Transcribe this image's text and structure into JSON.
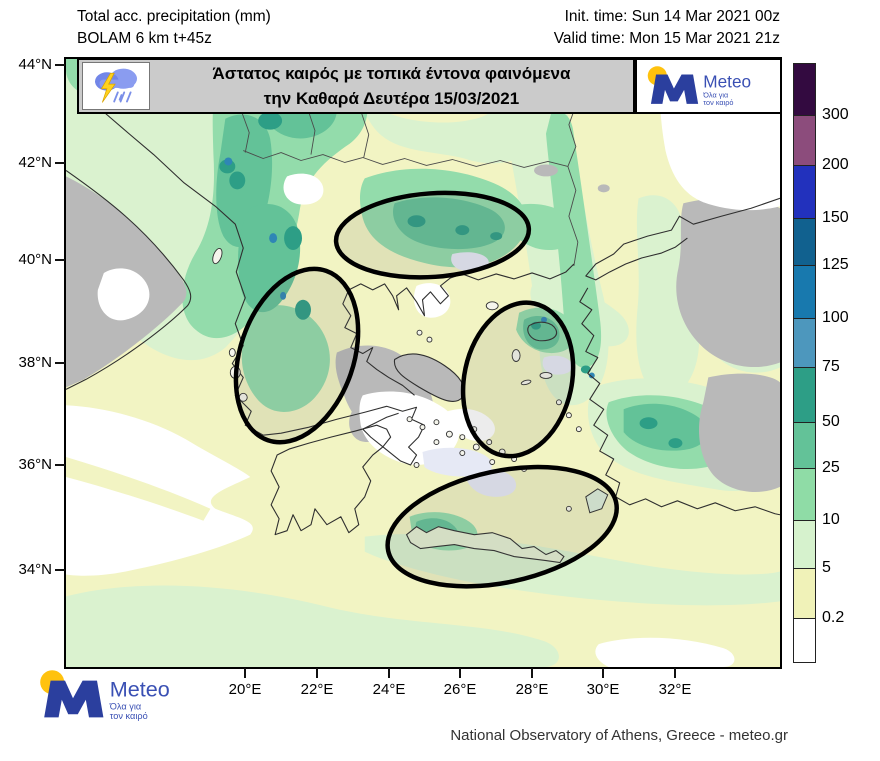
{
  "header": {
    "product_line1": "Total acc. precipitation (mm)",
    "product_line2": "BOLAM 6 km t+45z",
    "init_time": "Init. time: Sun 14 Mar 2021 00z",
    "valid_time": "Valid time: Mon 15 Mar 2021 21z"
  },
  "banner": {
    "headline_line1": "Άστατος καιρός με τοπικά έντονα φαινόμενα",
    "headline_line2": "την Καθαρά Δευτέρα 15/03/2021"
  },
  "brand": {
    "name": "Meteo",
    "tagline_line1": "Όλα για",
    "tagline_line2": "τον καιρό",
    "brand_blue": "#2b3f9e",
    "brand_yellow": "#ffc20e"
  },
  "map": {
    "lat_ticks": [
      "44°N",
      "42°N",
      "40°N",
      "38°N",
      "36°N",
      "34°N"
    ],
    "lon_ticks": [
      "20°E",
      "22°E",
      "24°E",
      "26°E",
      "28°E",
      "30°E",
      "32°E"
    ],
    "highlight_ellipse_count": 4
  },
  "colorbar": {
    "unit": "mm",
    "labels": [
      "300",
      "200",
      "150",
      "125",
      "100",
      "75",
      "50",
      "25",
      "10",
      "5",
      "0.2"
    ],
    "colors_top_to_bottom": [
      "#330a40",
      "#8c4c7c",
      "#2231bd",
      "#11618f",
      "#1879ae",
      "#4d97bd",
      "#2d9e86",
      "#63c298",
      "#8fdca6",
      "#d6f2cd",
      "#f0f2b8",
      "#ffffff"
    ]
  },
  "footer": {
    "attribution": "National Observatory of Athens, Greece - meteo.gr"
  },
  "chart_data": {
    "type": "heatmap",
    "title": "Total acc. precipitation (mm)",
    "model": "BOLAM 6 km t+45z",
    "init_time": "Sun 14 Mar 2021 00z",
    "valid_time": "Mon 15 Mar 2021 21z",
    "x_ticks": [
      "20°E",
      "22°E",
      "24°E",
      "26°E",
      "28°E",
      "30°E",
      "32°E"
    ],
    "y_ticks": [
      "44°N",
      "42°N",
      "40°N",
      "38°N",
      "36°N",
      "34°N"
    ],
    "scale_levels_mm": [
      0.2,
      5,
      10,
      25,
      50,
      75,
      100,
      125,
      150,
      200,
      300
    ],
    "scale_colors_low_to_high": [
      "#ffffff",
      "#f0f2b8",
      "#d6f2cd",
      "#8fdca6",
      "#63c298",
      "#2d9e86",
      "#4d97bd",
      "#1879ae",
      "#11618f",
      "#2231bd",
      "#8c4c7c",
      "#330a40"
    ],
    "annotations": "4 black ellipses highlighting areas of locally intense phenomena"
  }
}
